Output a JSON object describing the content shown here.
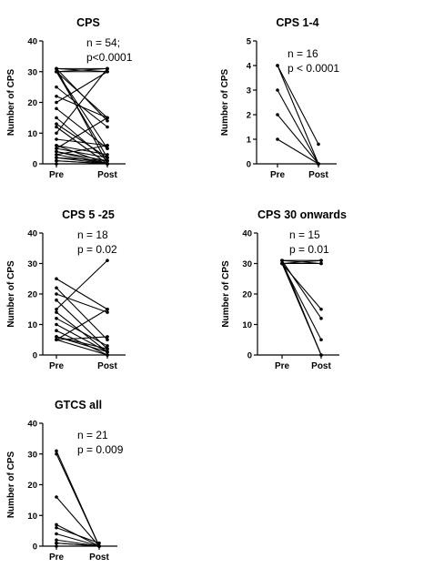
{
  "chart_data": [
    {
      "type": "line",
      "title": "CPS",
      "ylabel": "Number of CPS",
      "categories": [
        "Pre",
        "Post"
      ],
      "ylim": [
        0,
        40
      ],
      "yticks": [
        "0",
        "10",
        "20",
        "30",
        "40"
      ],
      "annotation": [
        "n = 54;",
        "p<0.0001"
      ],
      "pairs": [
        [
          30,
          30
        ],
        [
          31,
          31
        ],
        [
          31,
          30
        ],
        [
          30,
          31
        ],
        [
          30,
          15
        ],
        [
          31,
          14
        ],
        [
          30,
          5
        ],
        [
          31,
          0
        ],
        [
          30,
          2
        ],
        [
          25,
          12
        ],
        [
          22,
          15
        ],
        [
          20,
          30
        ],
        [
          18,
          5
        ],
        [
          15,
          1
        ],
        [
          13,
          2
        ],
        [
          12,
          0
        ],
        [
          10,
          31
        ],
        [
          8,
          6
        ],
        [
          6,
          3
        ],
        [
          6,
          0
        ],
        [
          5,
          15
        ],
        [
          5,
          2
        ],
        [
          4,
          1
        ],
        [
          4,
          0
        ],
        [
          3,
          0
        ],
        [
          3,
          6
        ],
        [
          2,
          1
        ],
        [
          2,
          0
        ],
        [
          1,
          0
        ],
        [
          1,
          0
        ],
        [
          0,
          0
        ]
      ]
    },
    {
      "type": "line",
      "title": "CPS 1-4",
      "ylabel": "Number of CPS",
      "categories": [
        "Pre",
        "Post"
      ],
      "ylim": [
        0,
        5
      ],
      "yticks": [
        "0",
        "1",
        "2",
        "3",
        "4",
        "5"
      ],
      "annotation": [
        "n = 16",
        "p < 0.0001"
      ],
      "pairs": [
        [
          4,
          0.8
        ],
        [
          4,
          0
        ],
        [
          3,
          0
        ],
        [
          2,
          0
        ],
        [
          1,
          0
        ]
      ]
    },
    {
      "type": "line",
      "title": "CPS 5 -25",
      "ylabel": "Number of CPS",
      "categories": [
        "Pre",
        "Post"
      ],
      "ylim": [
        0,
        40
      ],
      "yticks": [
        "0",
        "10",
        "20",
        "30",
        "40"
      ],
      "annotation": [
        "n = 18",
        "p = 0.02"
      ],
      "pairs": [
        [
          25,
          15
        ],
        [
          22,
          5
        ],
        [
          20,
          14
        ],
        [
          18,
          2
        ],
        [
          15,
          31
        ],
        [
          14,
          1
        ],
        [
          12,
          3
        ],
        [
          10,
          1
        ],
        [
          8,
          0
        ],
        [
          6,
          1
        ],
        [
          6,
          2
        ],
        [
          5,
          15
        ],
        [
          5,
          6
        ],
        [
          5,
          0
        ]
      ]
    },
    {
      "type": "line",
      "title": "CPS 30 onwards",
      "ylabel": "Number of CPS",
      "categories": [
        "Pre",
        "Post"
      ],
      "ylim": [
        0,
        40
      ],
      "yticks": [
        "0",
        "10",
        "20",
        "30",
        "40"
      ],
      "annotation": [
        "n = 15",
        "p = 0.01"
      ],
      "pairs": [
        [
          31,
          31
        ],
        [
          30,
          30
        ],
        [
          31,
          30
        ],
        [
          30,
          31
        ],
        [
          30,
          15
        ],
        [
          31,
          12
        ],
        [
          30,
          5
        ],
        [
          31,
          0
        ],
        [
          30,
          0
        ]
      ]
    },
    {
      "type": "line",
      "title": "GTCS all",
      "ylabel": "Number of CPS",
      "categories": [
        "Pre",
        "Post"
      ],
      "ylim": [
        0,
        40
      ],
      "yticks": [
        "0",
        "10",
        "20",
        "30",
        "40"
      ],
      "annotation": [
        "n = 21",
        "p = 0.009"
      ],
      "pairs": [
        [
          31,
          0
        ],
        [
          30,
          0
        ],
        [
          16,
          0
        ],
        [
          7,
          0
        ],
        [
          6,
          1
        ],
        [
          4,
          0
        ],
        [
          2,
          0
        ],
        [
          1,
          0
        ],
        [
          1,
          0
        ],
        [
          0,
          0
        ]
      ]
    }
  ]
}
